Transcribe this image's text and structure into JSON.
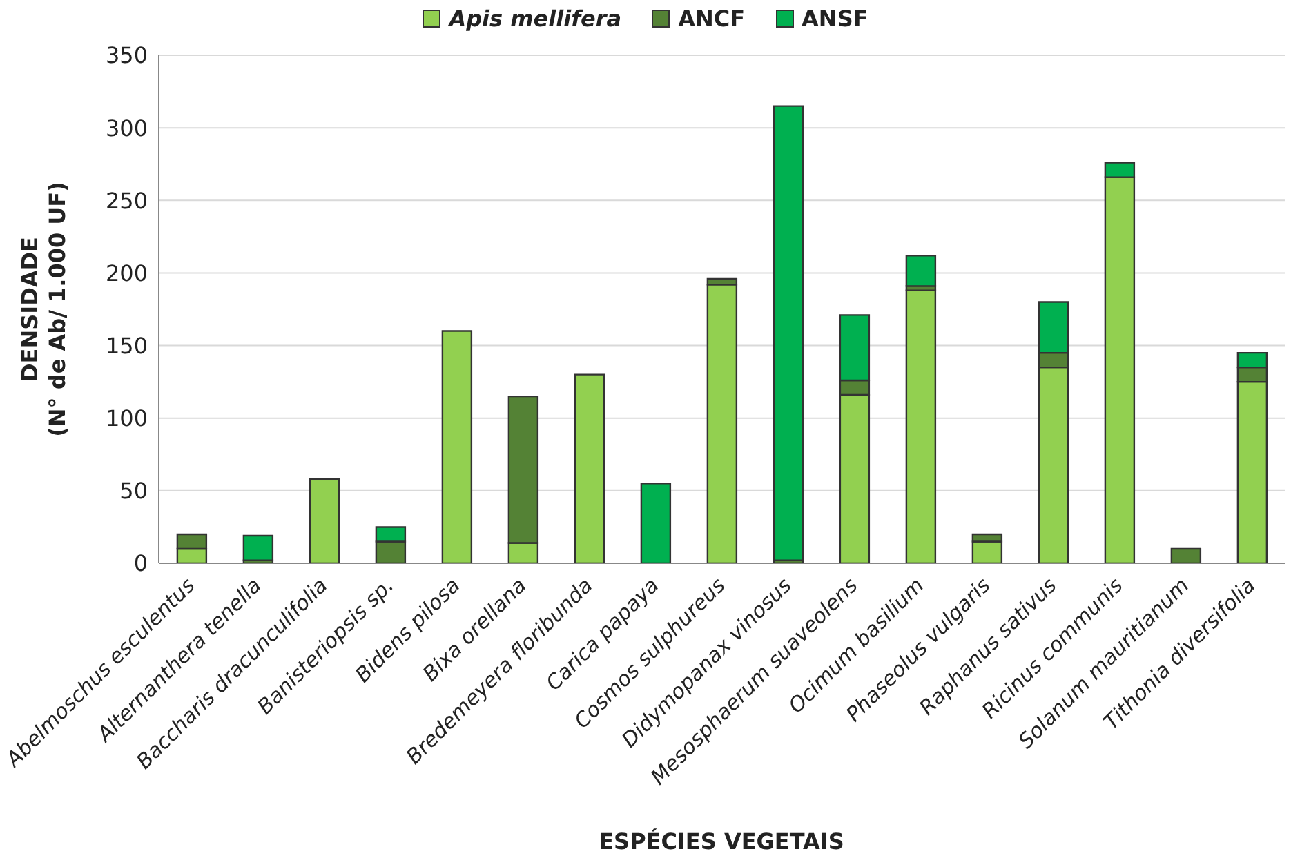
{
  "chart_data": {
    "type": "bar",
    "stacked": true,
    "categories": [
      "Abelmoschus esculentus",
      "Alternanthera tenella",
      "Baccharis dracunculifolia",
      "Banisteriopsis sp.",
      "Bidens pilosa",
      "Bixa orellana",
      "Bredemeyera floribunda",
      "Carica papaya",
      "Cosmos sulphureus",
      "Didymopanax vinosus",
      "Mesosphaerum suaveolens",
      "Ocimum basilium",
      "Phaseolus vulgaris",
      "Raphanus sativus",
      "Ricinus communis",
      "Solanum mauritianum",
      "Tithonia diversifolia"
    ],
    "series": [
      {
        "name": "Apis mellifera",
        "color": "#92d050",
        "values": [
          10,
          0,
          58,
          0,
          160,
          14,
          130,
          0,
          192,
          0,
          116,
          188,
          15,
          135,
          266,
          0,
          125
        ]
      },
      {
        "name": "ANCF",
        "color": "#548235",
        "values": [
          10,
          2,
          0,
          15,
          0,
          101,
          0,
          0,
          4,
          2,
          10,
          3,
          5,
          10,
          0,
          10,
          10
        ]
      },
      {
        "name": "ANSF",
        "color": "#00b050",
        "values": [
          0,
          17,
          0,
          10,
          0,
          0,
          0,
          55,
          0,
          313,
          45,
          21,
          0,
          35,
          10,
          0,
          10
        ]
      }
    ],
    "ylim": [
      0,
      350
    ],
    "yticks": [
      0,
      50,
      100,
      150,
      200,
      250,
      300,
      350
    ],
    "grid": "y",
    "legend": "top",
    "xlabel": "ESPÉCIES VEGETAIS",
    "ylabel": "DENSIDADE\n(N° de Ab/ 1.000 UF)"
  }
}
